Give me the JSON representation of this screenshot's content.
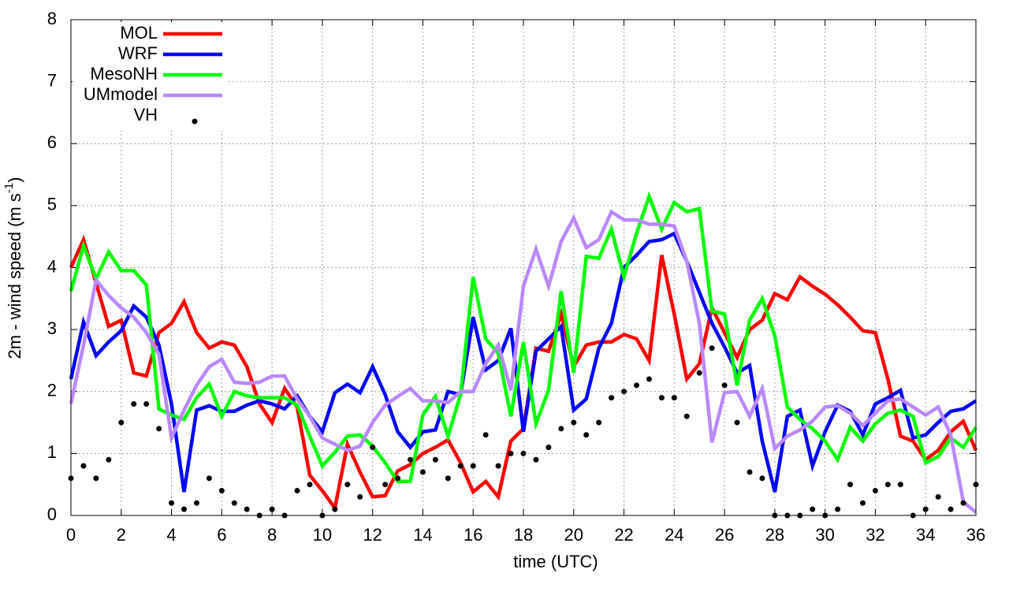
{
  "chart_data": {
    "type": "line",
    "xlabel": "time (UTC)",
    "ylabel": {
      "text": "2m - wind speed  (m s",
      "sup": "-1",
      "end": ")"
    },
    "x": [
      0,
      0.5,
      1,
      1.5,
      2,
      2.5,
      3,
      3.5,
      4,
      4.5,
      5,
      5.5,
      6,
      6.5,
      7,
      7.5,
      8,
      8.5,
      9,
      9.5,
      10,
      10.5,
      11,
      11.5,
      12,
      12.5,
      13,
      13.5,
      14,
      14.5,
      15,
      15.5,
      16,
      16.5,
      17,
      17.5,
      18,
      18.5,
      19,
      19.5,
      20,
      20.5,
      21,
      21.5,
      22,
      22.5,
      23,
      23.5,
      24,
      24.5,
      25,
      25.5,
      26,
      26.5,
      27,
      27.5,
      28,
      28.5,
      29,
      29.5,
      30,
      30.5,
      31,
      31.5,
      32,
      32.5,
      33,
      33.5,
      34,
      34.5,
      35,
      35.5,
      36
    ],
    "series": [
      {
        "name": "MOL",
        "color": "#ff0000",
        "style": "line",
        "values": [
          4.0,
          4.45,
          3.75,
          3.05,
          3.15,
          2.3,
          2.25,
          2.95,
          3.1,
          3.45,
          2.95,
          2.7,
          2.8,
          2.75,
          2.4,
          1.8,
          1.5,
          2.05,
          1.75,
          0.65,
          0.4,
          0.12,
          1.15,
          0.7,
          0.3,
          0.32,
          0.72,
          0.82,
          1.0,
          1.1,
          1.22,
          0.85,
          0.38,
          0.55,
          0.3,
          1.2,
          1.4,
          2.7,
          2.65,
          3.25,
          2.4,
          2.75,
          2.8,
          2.8,
          2.92,
          2.85,
          2.5,
          4.2,
          3.25,
          2.2,
          2.45,
          3.35,
          2.95,
          2.55,
          3.0,
          3.15,
          3.58,
          3.48,
          3.85,
          3.7,
          3.57,
          3.4,
          3.2,
          2.98,
          2.95,
          2.2,
          1.28,
          1.2,
          0.9,
          1.05,
          1.35,
          1.52,
          1.05
        ]
      },
      {
        "name": "WRF",
        "color": "#0000ff",
        "style": "line",
        "values": [
          2.2,
          3.12,
          2.58,
          2.8,
          2.98,
          3.38,
          3.2,
          2.75,
          1.8,
          0.38,
          1.7,
          1.77,
          1.68,
          1.68,
          1.78,
          1.85,
          1.8,
          1.72,
          1.93,
          1.6,
          1.35,
          1.98,
          2.12,
          1.98,
          2.4,
          1.95,
          1.35,
          1.1,
          1.35,
          1.38,
          2.0,
          1.95,
          3.2,
          2.35,
          2.5,
          3.02,
          1.35,
          2.65,
          2.85,
          3.05,
          1.7,
          1.88,
          2.7,
          3.1,
          4.0,
          4.2,
          4.42,
          4.45,
          4.55,
          4.1,
          3.6,
          3.1,
          2.72,
          2.3,
          2.42,
          1.2,
          0.38,
          1.6,
          1.7,
          0.8,
          1.35,
          1.78,
          1.68,
          1.3,
          1.8,
          1.9,
          2.02,
          1.25,
          1.3,
          1.5,
          1.68,
          1.72,
          1.85
        ]
      },
      {
        "name": "MesoNH",
        "color": "#00ff00",
        "style": "line",
        "values": [
          3.62,
          4.35,
          3.82,
          4.25,
          3.95,
          3.95,
          3.72,
          1.72,
          1.62,
          1.55,
          1.9,
          2.12,
          1.6,
          2.0,
          1.93,
          1.9,
          1.9,
          1.9,
          1.78,
          1.28,
          0.8,
          1.02,
          1.28,
          1.3,
          1.12,
          0.85,
          0.55,
          0.55,
          1.62,
          1.92,
          1.28,
          1.95,
          3.85,
          2.85,
          2.62,
          1.6,
          2.8,
          1.48,
          2.02,
          3.62,
          2.3,
          4.18,
          4.15,
          4.62,
          3.85,
          4.55,
          5.15,
          4.62,
          5.05,
          4.9,
          4.95,
          3.3,
          3.25,
          2.1,
          3.15,
          3.5,
          2.9,
          1.75,
          1.55,
          1.4,
          1.2,
          0.9,
          1.42,
          1.2,
          1.48,
          1.65,
          1.7,
          1.6,
          0.85,
          0.95,
          1.25,
          1.1,
          1.42
        ]
      },
      {
        "name": "UMmodel",
        "color": "#bb88ff",
        "style": "line",
        "values": [
          1.8,
          2.75,
          3.8,
          3.55,
          3.35,
          3.2,
          2.95,
          2.6,
          1.25,
          1.7,
          2.1,
          2.4,
          2.52,
          2.15,
          2.13,
          2.15,
          2.25,
          2.25,
          1.88,
          1.6,
          1.25,
          1.15,
          1.05,
          1.12,
          1.5,
          1.78,
          1.92,
          2.05,
          1.85,
          1.85,
          1.82,
          2.0,
          2.0,
          2.45,
          2.75,
          2.02,
          3.7,
          4.3,
          3.7,
          4.42,
          4.8,
          4.32,
          4.45,
          4.9,
          4.77,
          4.77,
          4.7,
          4.7,
          4.67,
          4.1,
          3.1,
          1.18,
          1.98,
          2.0,
          1.6,
          2.05,
          1.08,
          1.28,
          1.38,
          1.52,
          1.75,
          1.77,
          1.65,
          1.45,
          1.65,
          1.85,
          1.88,
          1.75,
          1.62,
          1.75,
          1.3,
          0.22,
          0.05
        ]
      },
      {
        "name": "VH",
        "color": "#000000",
        "style": "points",
        "values": [
          0.6,
          0.8,
          0.6,
          0.9,
          1.5,
          1.8,
          1.8,
          1.4,
          0.2,
          0.1,
          0.2,
          0.6,
          0.4,
          0.2,
          0.1,
          0.0,
          0.1,
          0.0,
          0.4,
          0.5,
          0.0,
          0.1,
          0.5,
          0.3,
          1.1,
          0.5,
          0.6,
          0.9,
          0.7,
          0.9,
          0.6,
          0.8,
          0.8,
          1.3,
          0.8,
          1.0,
          1.0,
          0.9,
          1.1,
          1.4,
          1.5,
          1.3,
          1.5,
          1.9,
          2.0,
          2.1,
          2.2,
          1.9,
          1.9,
          1.6,
          2.3,
          2.7,
          2.1,
          1.5,
          0.7,
          0.6,
          0.0,
          0.0,
          0.0,
          0.1,
          0.0,
          0.1,
          0.5,
          0.2,
          0.4,
          0.5,
          0.5,
          0.0,
          0.1,
          0.3,
          0.1,
          0.2,
          0.5
        ]
      }
    ],
    "xlim": [
      0,
      36
    ],
    "xticks": [
      0,
      2,
      4,
      6,
      8,
      10,
      12,
      14,
      16,
      18,
      20,
      22,
      24,
      26,
      28,
      30,
      32,
      34,
      36
    ],
    "ylim": [
      0,
      8
    ],
    "yticks": [
      0,
      1,
      2,
      3,
      4,
      5,
      6,
      7,
      8
    ],
    "grid": true,
    "legend": "upper left"
  }
}
